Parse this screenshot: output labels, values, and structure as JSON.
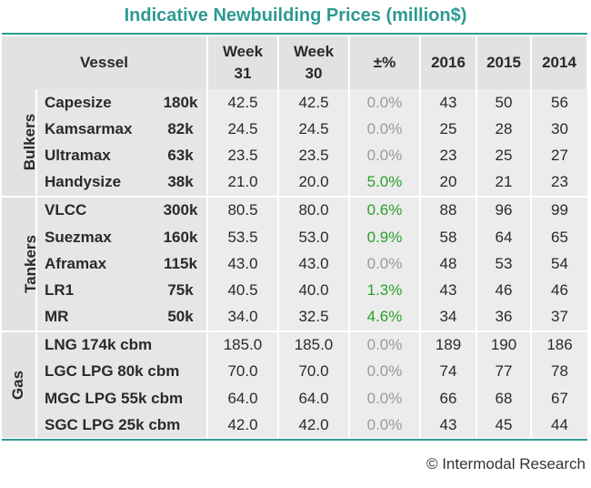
{
  "title": "Indicative Newbuilding Prices (million$)",
  "header": {
    "vessel": "Vessel",
    "week31_line1": "Week",
    "week31_line2": "31",
    "week30_line1": "Week",
    "week30_line2": "30",
    "change": "±%",
    "y2016": "2016",
    "y2015": "2015",
    "y2014": "2014"
  },
  "groups": [
    {
      "label": "Bulkers",
      "rows": [
        {
          "name": "Capesize",
          "size": "180k",
          "w31": "42.5",
          "w30": "42.5",
          "chg": "0.0%",
          "y2016": "43",
          "y2015": "50",
          "y2014": "56"
        },
        {
          "name": "Kamsarmax",
          "size": "82k",
          "w31": "24.5",
          "w30": "24.5",
          "chg": "0.0%",
          "y2016": "25",
          "y2015": "28",
          "y2014": "30"
        },
        {
          "name": "Ultramax",
          "size": "63k",
          "w31": "23.5",
          "w30": "23.5",
          "chg": "0.0%",
          "y2016": "23",
          "y2015": "25",
          "y2014": "27"
        },
        {
          "name": "Handysize",
          "size": "38k",
          "w31": "21.0",
          "w30": "20.0",
          "chg": "5.0%",
          "y2016": "20",
          "y2015": "21",
          "y2014": "23"
        }
      ]
    },
    {
      "label": "Tankers",
      "rows": [
        {
          "name": "VLCC",
          "size": "300k",
          "w31": "80.5",
          "w30": "80.0",
          "chg": "0.6%",
          "y2016": "88",
          "y2015": "96",
          "y2014": "99"
        },
        {
          "name": "Suezmax",
          "size": "160k",
          "w31": "53.5",
          "w30": "53.0",
          "chg": "0.9%",
          "y2016": "58",
          "y2015": "64",
          "y2014": "65"
        },
        {
          "name": "Aframax",
          "size": "115k",
          "w31": "43.0",
          "w30": "43.0",
          "chg": "0.0%",
          "y2016": "48",
          "y2015": "53",
          "y2014": "54"
        },
        {
          "name": "LR1",
          "size": "75k",
          "w31": "40.5",
          "w30": "40.0",
          "chg": "1.3%",
          "y2016": "43",
          "y2015": "46",
          "y2014": "46"
        },
        {
          "name": "MR",
          "size": "50k",
          "w31": "34.0",
          "w30": "32.5",
          "chg": "4.6%",
          "y2016": "34",
          "y2015": "36",
          "y2014": "37"
        }
      ]
    },
    {
      "label": "Gas",
      "rows": [
        {
          "name": "LNG 174k cbm",
          "w31": "185.0",
          "w30": "185.0",
          "chg": "0.0%",
          "y2016": "189",
          "y2015": "190",
          "y2014": "186"
        },
        {
          "name": "LGC LPG 80k cbm",
          "w31": "70.0",
          "w30": "70.0",
          "chg": "0.0%",
          "y2016": "74",
          "y2015": "77",
          "y2014": "78"
        },
        {
          "name": "MGC LPG 55k cbm",
          "w31": "64.0",
          "w30": "64.0",
          "chg": "0.0%",
          "y2016": "66",
          "y2015": "68",
          "y2014": "67"
        },
        {
          "name": "SGC LPG 25k cbm",
          "w31": "42.0",
          "w30": "42.0",
          "chg": "0.0%",
          "y2016": "43",
          "y2015": "45",
          "y2014": "44"
        }
      ]
    }
  ],
  "credit": "© Intermodal Research",
  "colors": {
    "accent": "#2e9a92",
    "positive": "#2aa02a",
    "zero": "#9a9a9a"
  }
}
